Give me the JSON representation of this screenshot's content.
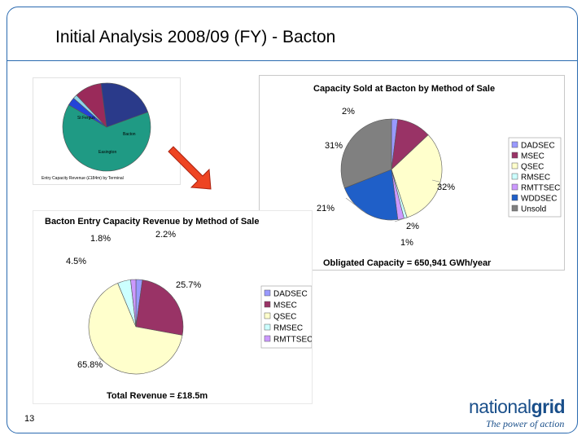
{
  "slide": {
    "title": "Initial Analysis 2008/09 (FY) - Bacton",
    "page_number": "13"
  },
  "logo": {
    "word_part1": "national",
    "word_part2": "grid",
    "tagline": "The power of action"
  },
  "colors": {
    "frame": "#2a6ab0",
    "DADSEC": "#9999ff",
    "MSEC": "#993366",
    "QSEC": "#ffffcc",
    "RMSEC": "#ccffff",
    "RMTTSEC": "#cc99ff",
    "WDDSEC": "#1f5fc8",
    "Unsold": "#808080",
    "terminal_green": "#1f9a84",
    "terminal_blue": "#2343d8",
    "terminal_maroon": "#9a2a5a",
    "terminal_navy": "#2a3a8a",
    "arrow": "#ee4422"
  },
  "chart_data": [
    {
      "id": "terminal",
      "type": "pie",
      "title": "Entry Capacity Revenue (£184m) by Terminal",
      "slices": [
        {
          "label": "St Fergus",
          "value": 64,
          "color": "#1f9a84"
        },
        {
          "label": "",
          "value": 3,
          "color": "#2343d8"
        },
        {
          "label": "",
          "value": 1.5,
          "color": "#8fd3e8"
        },
        {
          "label": "Bacton",
          "value": 10,
          "color": "#9a2a5a"
        },
        {
          "label": "Easington",
          "value": 21.5,
          "color": "#2a3a8a"
        }
      ]
    },
    {
      "id": "capacity",
      "type": "pie",
      "title": "Capacity Sold at Bacton  by Method of Sale",
      "footer": "Obligated Capacity = 650,941 GWh/year",
      "slices": [
        {
          "label": "DADSEC",
          "value": 2,
          "text": "2%",
          "color": "#9999ff"
        },
        {
          "label": "MSEC",
          "value": 11,
          "text": "",
          "color": "#993366"
        },
        {
          "label": "QSEC",
          "value": 32,
          "text": "32%",
          "color": "#ffffcc"
        },
        {
          "label": "RMSEC",
          "value": 1,
          "text": "1%",
          "color": "#ccffff"
        },
        {
          "label": "RMTTSEC",
          "value": 2,
          "text": "2%",
          "color": "#cc99ff"
        },
        {
          "label": "WDDSEC",
          "value": 21,
          "text": "21%",
          "color": "#1f5fc8"
        },
        {
          "label": "Unsold",
          "value": 31,
          "text": "31%",
          "color": "#808080"
        }
      ],
      "legend": [
        "DADSEC",
        "MSEC",
        "QSEC",
        "RMSEC",
        "RMTTSEC",
        "WDDSEC",
        "Unsold"
      ],
      "legend_position": "right"
    },
    {
      "id": "revenue",
      "type": "pie",
      "title": "Bacton Entry Capacity Revenue by Method of Sale",
      "footer": "Total Revenue = £18.5m",
      "slices": [
        {
          "label": "DADSEC",
          "value": 2.2,
          "text": "2.2%",
          "color": "#9999ff"
        },
        {
          "label": "MSEC",
          "value": 25.7,
          "text": "25.7%",
          "color": "#993366"
        },
        {
          "label": "QSEC",
          "value": 65.8,
          "text": "65.8%",
          "color": "#ffffcc"
        },
        {
          "label": "RMSEC",
          "value": 4.5,
          "text": "4.5%",
          "color": "#ccffff"
        },
        {
          "label": "RMTTSEC",
          "value": 1.8,
          "text": "1.8%",
          "color": "#cc99ff"
        }
      ],
      "legend": [
        "DADSEC",
        "MSEC",
        "QSEC",
        "RMSEC",
        "RMTTSEC"
      ],
      "legend_position": "right"
    }
  ]
}
